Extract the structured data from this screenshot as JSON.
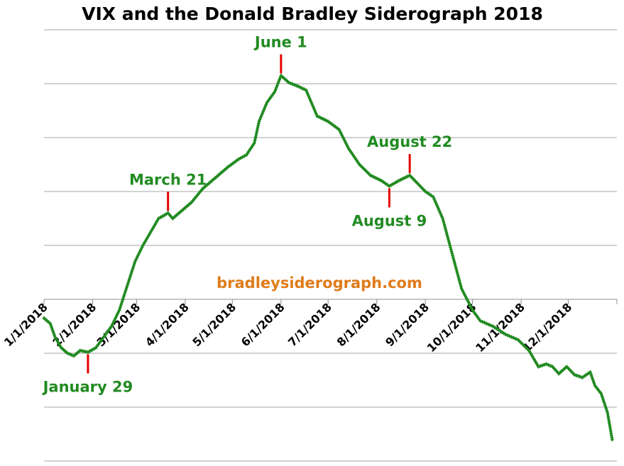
{
  "chart_data": {
    "type": "line",
    "title": "VIX and the Donald Bradley Siderograph 2018",
    "watermark": "bradleysiderograph.com",
    "xlim": [
      "2018-01-01",
      "2019-01-01"
    ],
    "ylim": [
      -3,
      5
    ],
    "y_gridlines": [
      -3,
      -2,
      -1,
      0,
      1,
      2,
      3,
      4,
      5
    ],
    "grid": true,
    "legend": "none",
    "x_tick_labels": [
      {
        "date": "2018-01-01",
        "label": "1/1/2018"
      },
      {
        "date": "2018-02-01",
        "label": "2/1/2018"
      },
      {
        "date": "2018-03-01",
        "label": "3/1/2018"
      },
      {
        "date": "2018-04-01",
        "label": "4/1/2018"
      },
      {
        "date": "2018-05-01",
        "label": "5/1/2018"
      },
      {
        "date": "2018-06-01",
        "label": "6/1/2018"
      },
      {
        "date": "2018-07-01",
        "label": "7/1/2018"
      },
      {
        "date": "2018-08-01",
        "label": "8/1/2018"
      },
      {
        "date": "2018-09-01",
        "label": "9/1/2018"
      },
      {
        "date": "2018-10-01",
        "label": "10/1/2018"
      },
      {
        "date": "2018-11-01",
        "label": "11/1/2018"
      },
      {
        "date": "2018-12-01",
        "label": "12/1/2018"
      }
    ],
    "series": [
      {
        "color": "#228b22",
        "points": [
          [
            "2018-01-01",
            -0.35
          ],
          [
            "2018-01-05",
            -0.45
          ],
          [
            "2018-01-08",
            -0.7
          ],
          [
            "2018-01-12",
            -0.9
          ],
          [
            "2018-01-16",
            -1.0
          ],
          [
            "2018-01-20",
            -1.05
          ],
          [
            "2018-01-24",
            -0.95
          ],
          [
            "2018-01-29",
            -0.98
          ],
          [
            "2018-02-03",
            -0.9
          ],
          [
            "2018-02-08",
            -0.7
          ],
          [
            "2018-02-13",
            -0.5
          ],
          [
            "2018-02-18",
            -0.2
          ],
          [
            "2018-02-23",
            0.25
          ],
          [
            "2018-02-28",
            0.7
          ],
          [
            "2018-03-05",
            1.0
          ],
          [
            "2018-03-10",
            1.25
          ],
          [
            "2018-03-15",
            1.5
          ],
          [
            "2018-03-21",
            1.6
          ],
          [
            "2018-03-24",
            1.5
          ],
          [
            "2018-03-28",
            1.6
          ],
          [
            "2018-04-05",
            1.8
          ],
          [
            "2018-04-12",
            2.05
          ],
          [
            "2018-04-20",
            2.25
          ],
          [
            "2018-04-28",
            2.45
          ],
          [
            "2018-05-05",
            2.6
          ],
          [
            "2018-05-10",
            2.68
          ],
          [
            "2018-05-15",
            2.9
          ],
          [
            "2018-05-18",
            3.3
          ],
          [
            "2018-05-23",
            3.65
          ],
          [
            "2018-05-28",
            3.85
          ],
          [
            "2018-06-01",
            4.15
          ],
          [
            "2018-06-06",
            4.02
          ],
          [
            "2018-06-12",
            3.95
          ],
          [
            "2018-06-17",
            3.88
          ],
          [
            "2018-06-24",
            3.4
          ],
          [
            "2018-07-01",
            3.3
          ],
          [
            "2018-07-08",
            3.15
          ],
          [
            "2018-07-14",
            2.8
          ],
          [
            "2018-07-21",
            2.5
          ],
          [
            "2018-07-28",
            2.3
          ],
          [
            "2018-08-04",
            2.2
          ],
          [
            "2018-08-09",
            2.1
          ],
          [
            "2018-08-15",
            2.2
          ],
          [
            "2018-08-22",
            2.3
          ],
          [
            "2018-08-27",
            2.15
          ],
          [
            "2018-09-01",
            2.0
          ],
          [
            "2018-09-06",
            1.9
          ],
          [
            "2018-09-12",
            1.5
          ],
          [
            "2018-09-18",
            0.85
          ],
          [
            "2018-09-24",
            0.2
          ],
          [
            "2018-10-01",
            -0.2
          ],
          [
            "2018-10-06",
            -0.4
          ],
          [
            "2018-10-14",
            -0.5
          ],
          [
            "2018-10-22",
            -0.65
          ],
          [
            "2018-10-30",
            -0.75
          ],
          [
            "2018-11-06",
            -0.95
          ],
          [
            "2018-11-12",
            -1.25
          ],
          [
            "2018-11-17",
            -1.2
          ],
          [
            "2018-11-21",
            -1.25
          ],
          [
            "2018-11-25",
            -1.38
          ],
          [
            "2018-11-30",
            -1.25
          ],
          [
            "2018-12-05",
            -1.4
          ],
          [
            "2018-12-10",
            -1.45
          ],
          [
            "2018-12-15",
            -1.35
          ],
          [
            "2018-12-18",
            -1.6
          ],
          [
            "2018-12-22",
            -1.75
          ],
          [
            "2018-12-26",
            -2.1
          ],
          [
            "2018-12-29",
            -2.6
          ]
        ]
      }
    ],
    "annotations": [
      {
        "label": "June 1",
        "date": "2018-06-01",
        "value": 4.15,
        "placement": "above"
      },
      {
        "label": "March 21",
        "date": "2018-03-21",
        "value": 1.6,
        "placement": "above"
      },
      {
        "label": "August 22",
        "date": "2018-08-22",
        "value": 2.3,
        "placement": "above"
      },
      {
        "label": "August 9",
        "date": "2018-08-09",
        "value": 2.1,
        "placement": "below"
      },
      {
        "label": "January 29",
        "date": "2018-01-29",
        "value": -0.98,
        "placement": "below"
      }
    ],
    "colors": {
      "line": "#228b22",
      "annotation_text": "#228b22",
      "marker_line": "#e60000",
      "watermark": "#e07b1a",
      "grid": "#a6a6a6"
    }
  }
}
